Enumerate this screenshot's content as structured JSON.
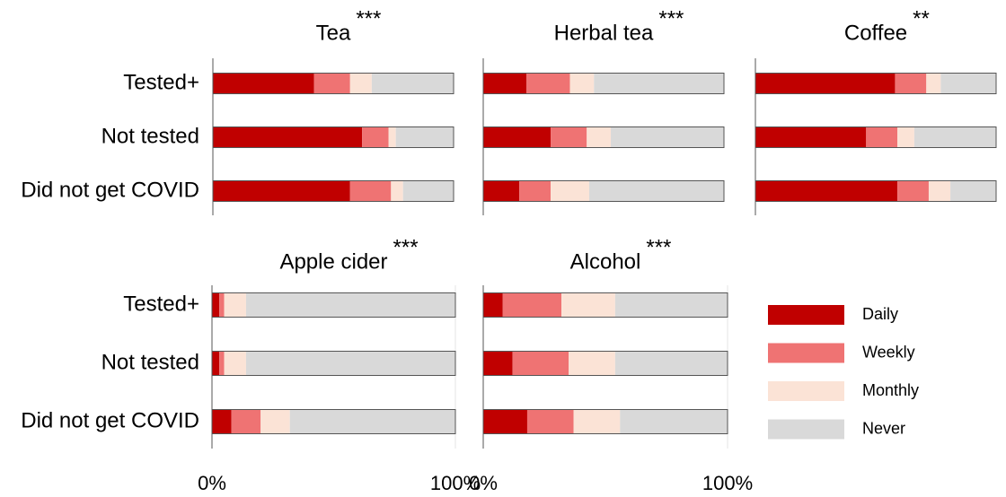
{
  "chart_data": [
    {
      "type": "stacked-bar",
      "title": "Tea",
      "significance": "***",
      "categories": [
        "Tested+",
        "Not tested",
        "Did not get COVID"
      ],
      "xlim": [
        0,
        100
      ],
      "series": [
        {
          "values": [
            42,
            62,
            57
          ]
        },
        {
          "values": [
            15,
            11,
            17
          ]
        },
        {
          "values": [
            9,
            3,
            5
          ]
        },
        {
          "values": [
            34,
            24,
            21
          ]
        }
      ]
    },
    {
      "type": "stacked-bar",
      "title": "Herbal tea",
      "significance": "***",
      "categories": [
        null,
        null,
        null
      ],
      "xlim": [
        0,
        100
      ],
      "series": [
        {
          "values": [
            18,
            28,
            15
          ]
        },
        {
          "values": [
            18,
            15,
            13
          ]
        },
        {
          "values": [
            10,
            10,
            16
          ]
        },
        {
          "values": [
            54,
            47,
            56
          ]
        }
      ]
    },
    {
      "type": "stacked-bar",
      "title": "Coffee",
      "significance": "**",
      "categories": [
        null,
        null,
        null
      ],
      "xlim": [
        0,
        100
      ],
      "series": [
        {
          "values": [
            58,
            46,
            59
          ]
        },
        {
          "values": [
            13,
            13,
            13
          ]
        },
        {
          "values": [
            6,
            7,
            9
          ]
        },
        {
          "values": [
            23,
            34,
            19
          ]
        }
      ]
    },
    {
      "type": "stacked-bar",
      "title": "Apple cider",
      "significance": "***",
      "categories": [
        "Tested+",
        "Not tested",
        "Did not get COVID"
      ],
      "xlim": [
        0,
        100
      ],
      "xticks": [
        {
          "value": 0,
          "label": "0%"
        },
        {
          "value": 100,
          "label": "100%"
        }
      ],
      "series": [
        {
          "values": [
            3,
            3,
            8
          ]
        },
        {
          "values": [
            2,
            2,
            12
          ]
        },
        {
          "values": [
            9,
            9,
            12
          ]
        },
        {
          "values": [
            86,
            86,
            68
          ]
        }
      ]
    },
    {
      "type": "stacked-bar",
      "title": "Alcohol",
      "significance": "***",
      "categories": [
        null,
        null,
        null
      ],
      "xlim": [
        0,
        100
      ],
      "xticks": [
        {
          "value": 0,
          "label": "0%"
        },
        {
          "value": 100,
          "label": "100%"
        }
      ],
      "series": [
        {
          "values": [
            8,
            12,
            18
          ]
        },
        {
          "values": [
            24,
            23,
            19
          ]
        },
        {
          "values": [
            22,
            19,
            19
          ]
        },
        {
          "values": [
            46,
            46,
            44
          ]
        }
      ]
    }
  ],
  "legend": [
    {
      "name": "Daily",
      "color": "#c00000"
    },
    {
      "name": "Weekly",
      "color": "#ef7373"
    },
    {
      "name": "Monthly",
      "color": "#fbe3d6"
    },
    {
      "name": "Never",
      "color": "#d9d9d9"
    }
  ]
}
